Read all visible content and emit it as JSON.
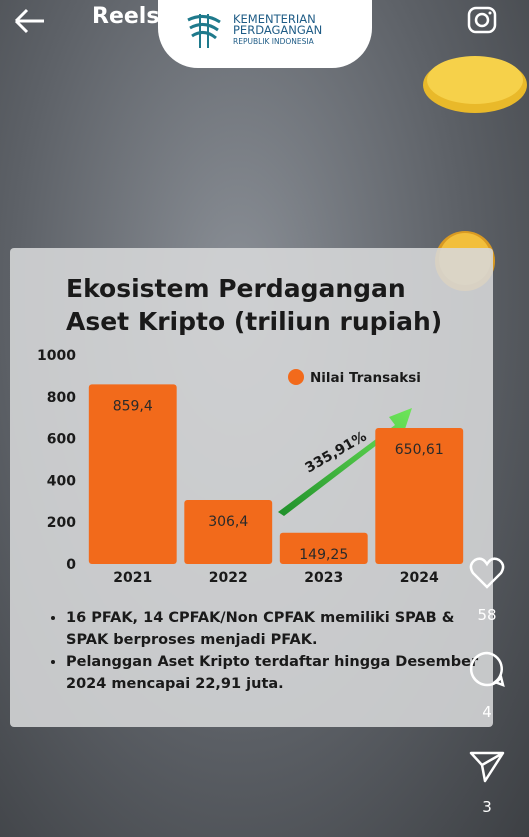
{
  "header": {
    "title": "Reels",
    "logo": [
      "KEMENTERIAN",
      "PERDAGANGAN",
      "REPUBLIK INDONESIA"
    ]
  },
  "chart_data": {
    "type": "bar",
    "title": "Ekosistem Perdagangan Aset Kripto (triliun rupiah)",
    "categories": [
      "2021",
      "2022",
      "2023",
      "2024"
    ],
    "series": [
      {
        "name": "Nilai Transaksi",
        "color": "#f26a1b",
        "values": [
          859.4,
          306.4,
          149.25,
          650.61
        ],
        "value_labels": [
          "859,4",
          "306,4",
          "149,25",
          "650,61"
        ]
      }
    ],
    "ylim": [
      0,
      1000
    ],
    "yticks": [
      0,
      200,
      400,
      600,
      800,
      1000
    ],
    "annotation": "335,91%"
  },
  "notes": [
    "16 PFAK, 14 CPFAK/Non CPFAK memiliki SPAB & SPAK berproses menjadi PFAK.",
    "Pelanggan Aset Kripto terdaftar hingga Desember 2024 mencapai 22,91 juta."
  ],
  "actions": {
    "likes": 58,
    "comments": 4,
    "shares": 3
  }
}
